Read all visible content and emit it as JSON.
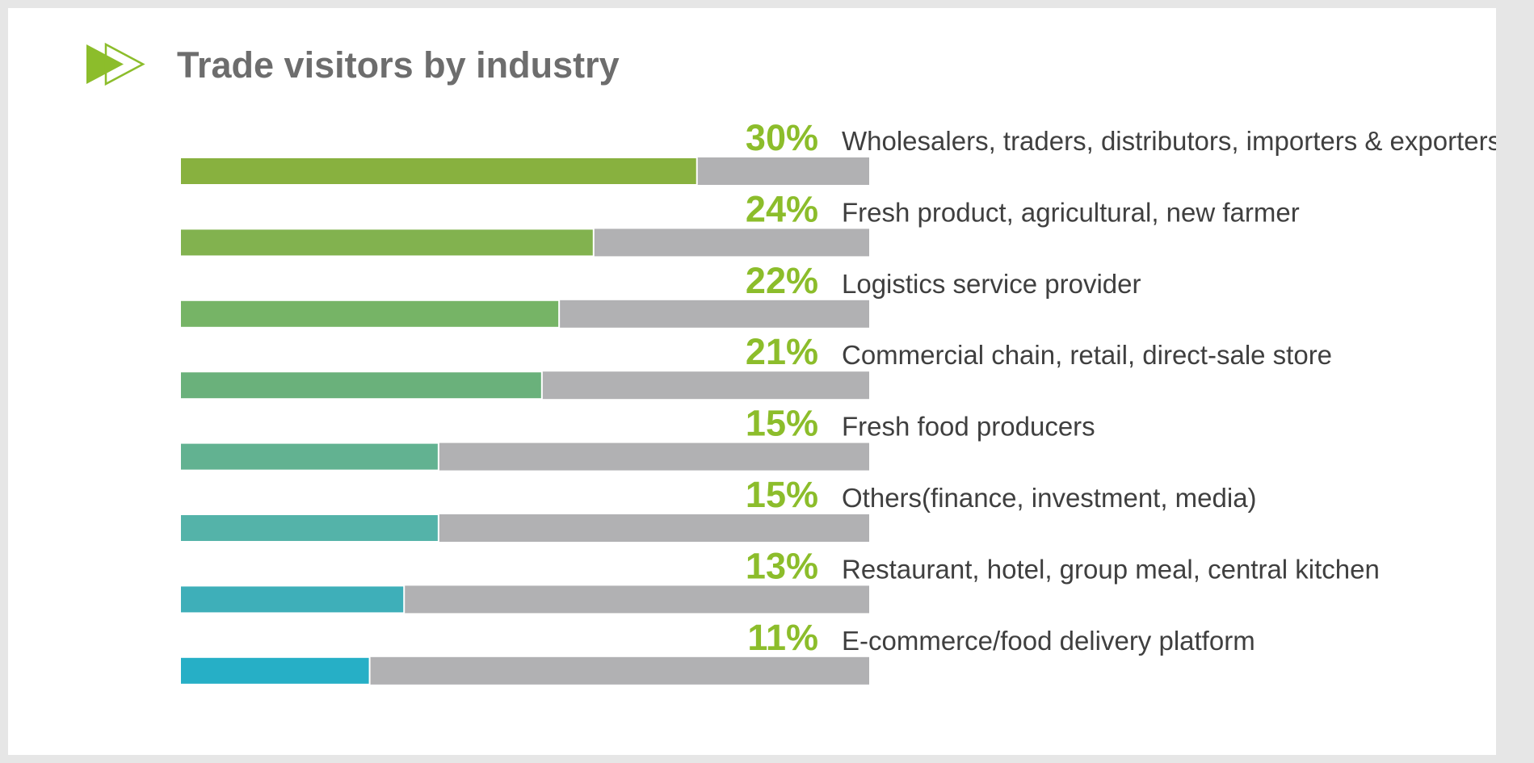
{
  "title": "Trade visitors by industry",
  "icon": "double-arrow-icon",
  "colors": {
    "title": "#6d6d6d",
    "percent_label": "#8cbd2b",
    "category_label": "#3f3f3f",
    "bar_track": "#b1b1b3",
    "icon_fill": "#8cbd2b",
    "page_border": "#e6e6e6"
  },
  "chart_data": {
    "type": "bar",
    "orientation": "horizontal",
    "title": "Trade visitors by industry",
    "xlim": [
      0,
      40
    ],
    "categories": [
      "Wholesalers, traders, distributors, importers & exporters",
      "Fresh product, agricultural, new farmer",
      "Logistics service provider",
      "Commercial chain, retail, direct-sale store",
      "Fresh food producers",
      "Others(finance, investment, media)",
      "Restaurant, hotel, group meal, central kitchen",
      "E-commerce/food delivery platform"
    ],
    "values": [
      30,
      24,
      22,
      21,
      15,
      15,
      13,
      11
    ],
    "labels": [
      "30%",
      "24%",
      "22%",
      "21%",
      "15%",
      "15%",
      "13%",
      "11%"
    ],
    "bar_colors": [
      "#88b13f",
      "#82b24f",
      "#76b466",
      "#6ab17b",
      "#62b291",
      "#54b3a9",
      "#3eafb9",
      "#26afc6"
    ],
    "track_color": "#b1b1b3",
    "legend": "none",
    "grid": false
  }
}
